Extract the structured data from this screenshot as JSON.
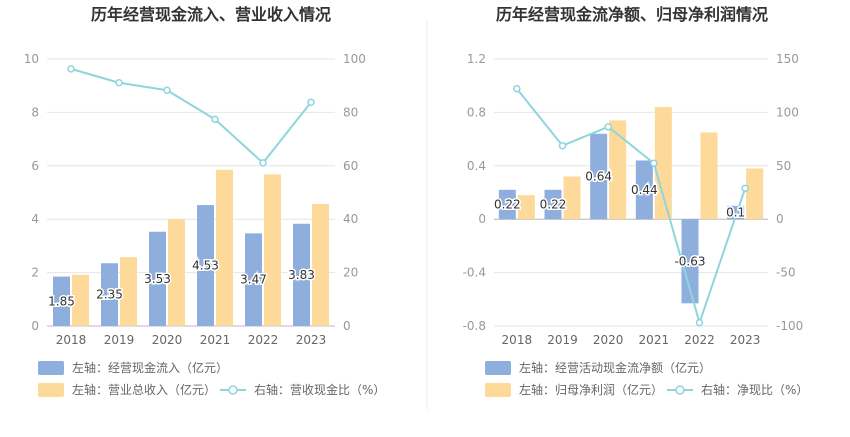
{
  "chart_data": [
    {
      "type": "bar",
      "title": "历年经营现金流入、营业收入情况",
      "categories": [
        "2018",
        "2019",
        "2020",
        "2021",
        "2022",
        "2023"
      ],
      "left_axis": {
        "min": 0,
        "max": 10,
        "ticks": [
          "0",
          "2",
          "4",
          "6",
          "8",
          "10"
        ]
      },
      "right_axis": {
        "min": 0,
        "max": 100,
        "ticks": [
          "0",
          "20",
          "40",
          "60",
          "80",
          "100"
        ]
      },
      "series": [
        {
          "name": "左轴：经营现金流入（亿元）",
          "type": "bar",
          "axis": "left",
          "color": "#8eaedd",
          "values": [
            1.85,
            2.35,
            3.53,
            4.53,
            3.47,
            3.83
          ],
          "labels": [
            "1.85",
            "2.35",
            "3.53",
            "4.53",
            "3.47",
            "3.83"
          ]
        },
        {
          "name": "左轴：营业总收入（亿元）",
          "type": "bar",
          "axis": "left",
          "color": "#fdd99a",
          "values": [
            1.92,
            2.58,
            4.0,
            5.85,
            5.68,
            4.57
          ]
        },
        {
          "name": "右轴：营收现金比（%）",
          "type": "line",
          "axis": "right",
          "color": "#8fd5dc",
          "values": [
            96.3,
            91.1,
            88.3,
            77.4,
            61.1,
            83.8
          ]
        }
      ],
      "grid": true,
      "legend": "bottom"
    },
    {
      "type": "bar",
      "title": "历年经营现金流净额、归母净利润情况",
      "categories": [
        "2018",
        "2019",
        "2020",
        "2021",
        "2022",
        "2023"
      ],
      "left_axis": {
        "min": -0.8,
        "max": 1.2,
        "ticks": [
          "-0.8",
          "-0.4",
          "0",
          "0.4",
          "0.8",
          "1.2"
        ]
      },
      "right_axis": {
        "min": -100,
        "max": 150,
        "ticks": [
          "-100",
          "-50",
          "0",
          "50",
          "100",
          "150"
        ]
      },
      "series": [
        {
          "name": "左轴：经营活动现金流净额（亿元）",
          "type": "bar",
          "axis": "left",
          "color": "#8eaedd",
          "values": [
            0.22,
            0.22,
            0.64,
            0.44,
            -0.63,
            0.1
          ],
          "labels": [
            "0.22",
            "0.22",
            "0.64",
            "0.44",
            "-0.63",
            "0.1"
          ]
        },
        {
          "name": "左轴：归母净利润（亿元）",
          "type": "bar",
          "axis": "left",
          "color": "#fdd99a",
          "values": [
            0.18,
            0.32,
            0.74,
            0.84,
            0.65,
            0.38
          ]
        },
        {
          "name": "右轴：净现比（%）",
          "type": "line",
          "axis": "right",
          "color": "#8fd5dc",
          "values": [
            122.2,
            68.8,
            86.5,
            52.4,
            -96.9,
            28.9
          ]
        }
      ],
      "grid": true,
      "legend": "bottom"
    }
  ]
}
